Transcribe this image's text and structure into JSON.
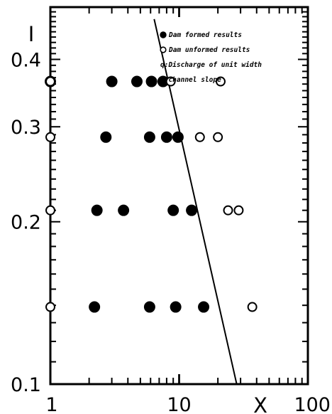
{
  "chart_data": {
    "type": "scatter",
    "title": "",
    "xlabel": "X",
    "ylabel": "I",
    "x_scale": "log",
    "y_scale": "log",
    "xlim": [
      1,
      100
    ],
    "ylim": [
      0.1,
      0.5
    ],
    "x_tick_labels": [
      {
        "value": 1,
        "label": "1"
      },
      {
        "value": 10,
        "label": "10"
      },
      {
        "value": 100,
        "label": "100"
      }
    ],
    "y_tick_labels": [
      {
        "value": 0.1,
        "label": "0.1"
      },
      {
        "value": 0.2,
        "label": "0.2"
      },
      {
        "value": 0.3,
        "label": "0.3"
      },
      {
        "value": 0.4,
        "label": "0.4"
      }
    ],
    "series": [
      {
        "name": "Dam formed results",
        "marker": "filled-circle",
        "points": [
          [
            1.0,
            0.364
          ],
          [
            3.0,
            0.364
          ],
          [
            4.7,
            0.364
          ],
          [
            6.1,
            0.364
          ],
          [
            7.5,
            0.364
          ],
          [
            2.7,
            0.287
          ],
          [
            5.9,
            0.287
          ],
          [
            8.0,
            0.287
          ],
          [
            9.8,
            0.287
          ],
          [
            2.3,
            0.21
          ],
          [
            3.7,
            0.21
          ],
          [
            9.0,
            0.21
          ],
          [
            12.5,
            0.21
          ],
          [
            2.2,
            0.139
          ],
          [
            5.9,
            0.139
          ],
          [
            9.4,
            0.139
          ],
          [
            15.5,
            0.139
          ]
        ]
      },
      {
        "name": "Dam unformed results",
        "marker": "open-circle",
        "points": [
          [
            1.0,
            0.364
          ],
          [
            8.6,
            0.364
          ],
          [
            21.0,
            0.364
          ],
          [
            1.0,
            0.287
          ],
          [
            14.5,
            0.287
          ],
          [
            20.0,
            0.287
          ],
          [
            1.0,
            0.21
          ],
          [
            24.0,
            0.21
          ],
          [
            29.0,
            0.21
          ],
          [
            1.0,
            0.139
          ],
          [
            37.0,
            0.139
          ]
        ]
      }
    ],
    "boundary_line": {
      "points": [
        [
          6.4,
          0.475
        ],
        [
          28.0,
          0.1
        ]
      ]
    },
    "legend": {
      "placement": "top-right",
      "entries": [
        {
          "marker": "filled-circle",
          "text": "Dam formed results"
        },
        {
          "marker": "open-circle",
          "text": "Dam unformed results"
        },
        {
          "marker": "none",
          "text": "q:Discharge of unit width"
        },
        {
          "marker": "none",
          "text": "I:channel slope"
        }
      ]
    },
    "grid": false
  }
}
